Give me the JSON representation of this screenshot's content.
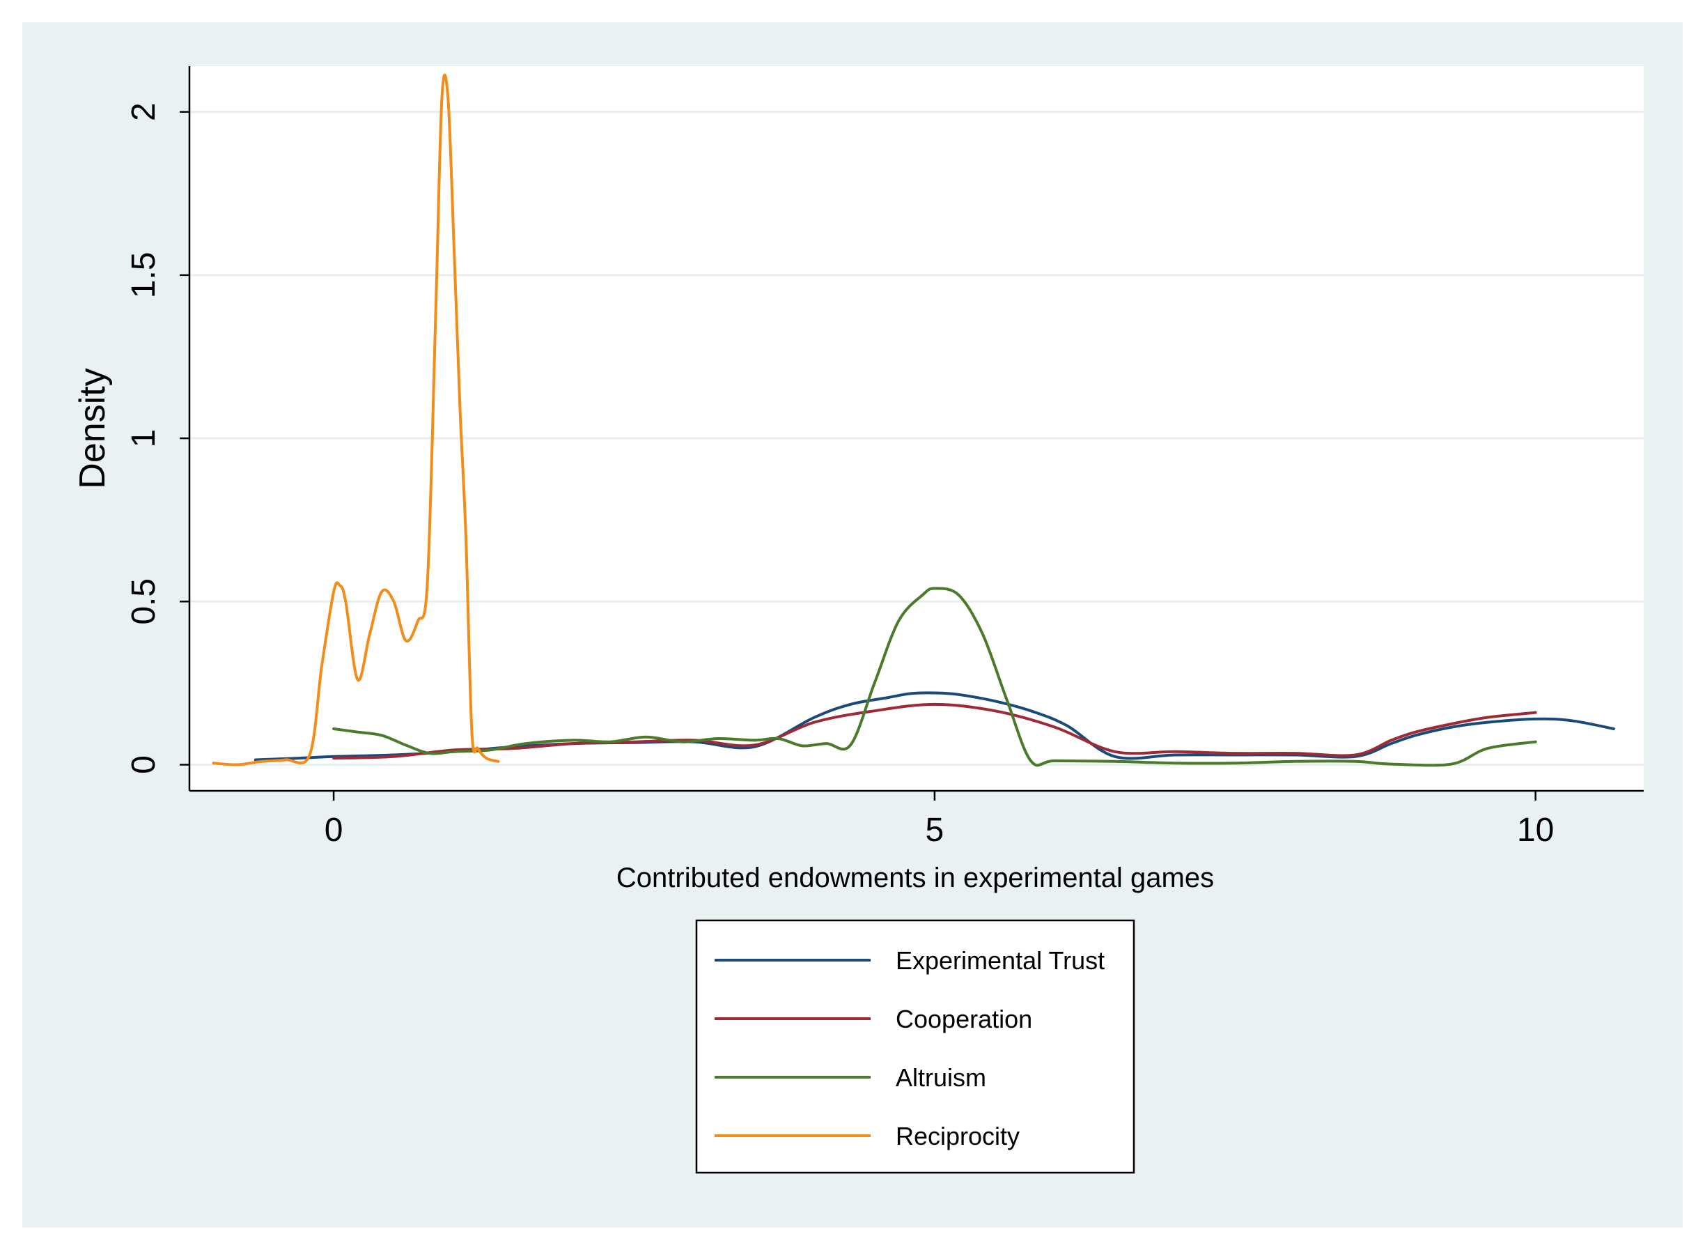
{
  "chart_data": {
    "type": "line",
    "title": "",
    "xlabel": "Contributed endowments in experimental games",
    "ylabel": "Density",
    "xlim": [
      -1.2,
      10.9
    ],
    "ylim": [
      -0.08,
      2.14
    ],
    "xticks": [
      0,
      5,
      10
    ],
    "xtick_labels": [
      "0",
      "5",
      "10"
    ],
    "yticks": [
      0,
      0.5,
      1,
      1.5,
      2
    ],
    "ytick_labels": [
      "0",
      "0.5",
      "1",
      "1.5",
      "2"
    ],
    "grid": true,
    "legend_position": "bottom",
    "series": [
      {
        "name": "Experimental Trust",
        "color": "#1a4a7a",
        "x": [
          -0.65,
          -0.3,
          0,
          0.5,
          1,
          1.5,
          2,
          2.5,
          3,
          3.5,
          4,
          4.3,
          4.6,
          4.8,
          5,
          5.2,
          5.5,
          5.8,
          6.1,
          6.5,
          7,
          7.5,
          8,
          8.5,
          8.8,
          9,
          9.3,
          9.6,
          10,
          10.3,
          10.65
        ],
        "y": [
          0.015,
          0.02,
          0.025,
          0.03,
          0.04,
          0.055,
          0.065,
          0.068,
          0.07,
          0.055,
          0.145,
          0.185,
          0.205,
          0.218,
          0.22,
          0.215,
          0.195,
          0.165,
          0.12,
          0.025,
          0.03,
          0.03,
          0.03,
          0.025,
          0.065,
          0.09,
          0.115,
          0.13,
          0.14,
          0.135,
          0.11
        ]
      },
      {
        "name": "Cooperation",
        "color": "#9e2a38",
        "x": [
          0,
          0.5,
          1,
          1.5,
          2,
          2.5,
          3,
          3.5,
          4,
          4.5,
          5,
          5.5,
          6,
          6.5,
          7,
          7.5,
          8,
          8.5,
          8.8,
          9,
          9.3,
          9.6,
          10
        ],
        "y": [
          0.02,
          0.025,
          0.045,
          0.05,
          0.065,
          0.07,
          0.075,
          0.06,
          0.13,
          0.165,
          0.185,
          0.165,
          0.115,
          0.04,
          0.04,
          0.035,
          0.035,
          0.03,
          0.075,
          0.1,
          0.125,
          0.145,
          0.16
        ]
      },
      {
        "name": "Altruism",
        "color": "#4b7a2b",
        "x": [
          0,
          0.2,
          0.4,
          0.6,
          0.8,
          1,
          1.3,
          1.6,
          2,
          2.3,
          2.6,
          2.9,
          3.2,
          3.5,
          3.7,
          3.9,
          4.1,
          4.3,
          4.5,
          4.7,
          4.9,
          5,
          5.2,
          5.4,
          5.6,
          5.8,
          6,
          6.5,
          7,
          7.5,
          8,
          8.5,
          8.8,
          9.3,
          9.6,
          10
        ],
        "y": [
          0.11,
          0.1,
          0.09,
          0.06,
          0.035,
          0.04,
          0.045,
          0.065,
          0.075,
          0.07,
          0.085,
          0.07,
          0.08,
          0.075,
          0.08,
          0.058,
          0.065,
          0.06,
          0.25,
          0.44,
          0.52,
          0.54,
          0.52,
          0.4,
          0.2,
          0.012,
          0.012,
          0.01,
          0.005,
          0.005,
          0.01,
          0.01,
          0.002,
          0.002,
          0.05,
          0.07
        ]
      },
      {
        "name": "Reciprocity",
        "color": "#f28c1a",
        "x": [
          -1,
          -0.8,
          -0.6,
          -0.4,
          -0.2,
          -0.1,
          0,
          0.05,
          0.1,
          0.2,
          0.3,
          0.4,
          0.5,
          0.6,
          0.7,
          0.78,
          0.85,
          0.9,
          0.95,
          1.0,
          1.05,
          1.1,
          1.15,
          1.2,
          1.27,
          1.37
        ],
        "y": [
          0.005,
          0.0,
          0.01,
          0.015,
          0.03,
          0.3,
          0.53,
          0.55,
          0.5,
          0.26,
          0.4,
          0.53,
          0.5,
          0.38,
          0.44,
          0.56,
          1.4,
          2.04,
          2.05,
          1.6,
          1.1,
          0.7,
          0.1,
          0.05,
          0.02,
          0.01
        ]
      }
    ]
  }
}
